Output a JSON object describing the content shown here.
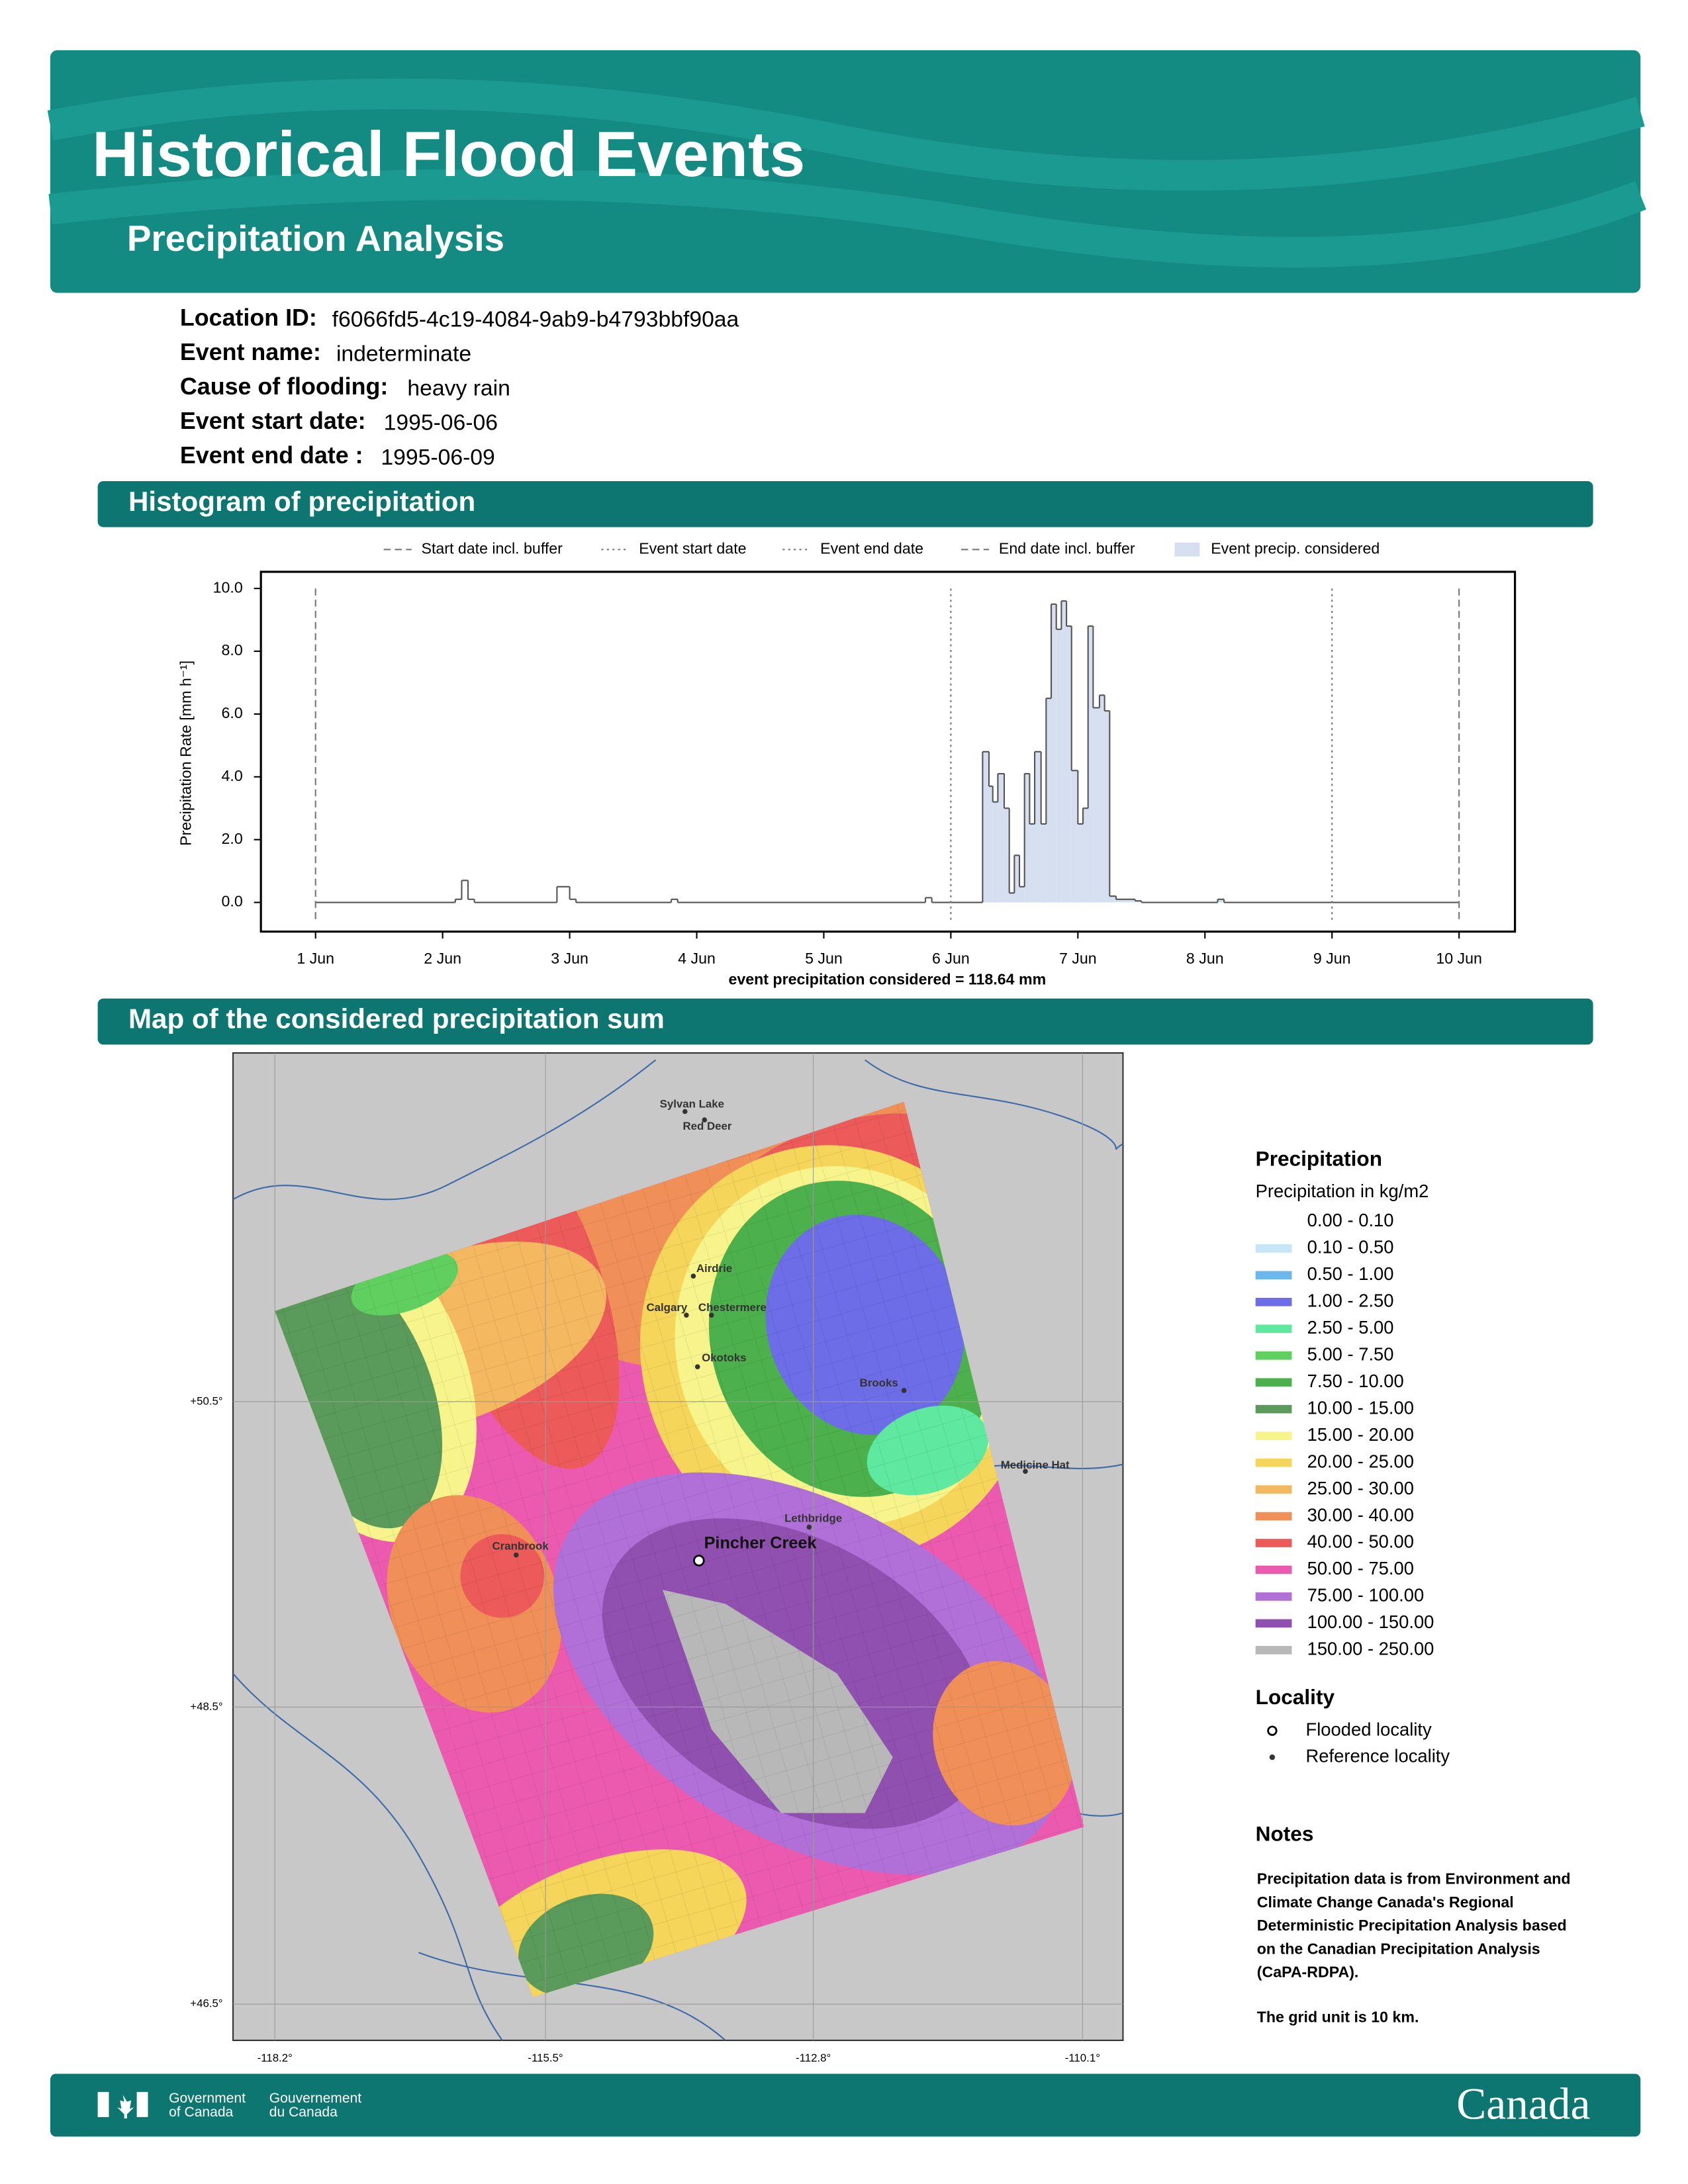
{
  "header": {
    "title": "Historical Flood Events",
    "subtitle": "Precipitation Analysis"
  },
  "event_info": [
    {
      "label": "Location ID:",
      "value": "f6066fd5-4c19-4084-9ab9-b4793bbf90aa"
    },
    {
      "label": "Event name:",
      "value": "indeterminate"
    },
    {
      "label": "Cause of flooding:",
      "value": "heavy rain"
    },
    {
      "label": "Event start date:",
      "value": "1995-06-06"
    },
    {
      "label": "Event end date :",
      "value": "1995-06-09"
    }
  ],
  "sections": [
    "Histogram of precipitation",
    "Map of the considered precipitation sum"
  ],
  "chart_data": {
    "type": "line",
    "drawstyle": "steps-post",
    "ylabel": "Precipitation Rate [mm h⁻¹]",
    "annotation": "event precipitation considered = 118.64 mm",
    "xlim": [
      -0.43,
      9.44
    ],
    "ylim": [
      -0.93,
      10.53
    ],
    "xticks": [
      {
        "value": 0,
        "label": "1 Jun"
      },
      {
        "value": 1,
        "label": "2 Jun"
      },
      {
        "value": 2,
        "label": "3 Jun"
      },
      {
        "value": 3,
        "label": "4 Jun"
      },
      {
        "value": 4,
        "label": "5 Jun"
      },
      {
        "value": 5,
        "label": "6 Jun"
      },
      {
        "value": 6,
        "label": "7 Jun"
      },
      {
        "value": 7,
        "label": "8 Jun"
      },
      {
        "value": 8,
        "label": "9 Jun"
      },
      {
        "value": 9,
        "label": "10 Jun"
      }
    ],
    "yticks": [
      {
        "value": 0,
        "label": "0.0"
      },
      {
        "value": 2,
        "label": "2.0"
      },
      {
        "value": 4,
        "label": "4.0"
      },
      {
        "value": 6,
        "label": "6.0"
      },
      {
        "value": 8,
        "label": "8.0"
      },
      {
        "value": 10,
        "label": "10.0"
      }
    ],
    "x": [
      0,
      1.1,
      1.15,
      1.2,
      1.25,
      1.9,
      2.0,
      2.05,
      2.8,
      2.85,
      4.8,
      4.85,
      5.25,
      5.3,
      5.33,
      5.37,
      5.42,
      5.46,
      5.5,
      5.54,
      5.58,
      5.62,
      5.66,
      5.71,
      5.75,
      5.79,
      5.83,
      5.87,
      5.91,
      5.95,
      6.0,
      6.04,
      6.08,
      6.12,
      6.17,
      6.21,
      6.25,
      6.3,
      6.45,
      6.5,
      7.1,
      7.15,
      9.0
    ],
    "values": [
      0,
      0.1,
      0.7,
      0.1,
      0,
      0.5,
      0.1,
      0,
      0.1,
      0,
      0.15,
      0,
      4.8,
      3.7,
      3.2,
      4.1,
      3.0,
      0.3,
      1.5,
      0.5,
      4.1,
      2.5,
      4.8,
      2.5,
      6.5,
      9.5,
      8.7,
      9.6,
      8.8,
      4.2,
      2.5,
      3.0,
      8.8,
      6.2,
      6.6,
      6.1,
      0.2,
      0.1,
      0.05,
      0,
      0.1,
      0,
      0
    ],
    "color": "#555555",
    "fill": {
      "name": "Event precip. considered",
      "color": "#d5dff0"
    },
    "vlines": [
      {
        "name": "Start date incl. buffer",
        "x": 0,
        "style": "dashed"
      },
      {
        "name": "Event start date",
        "x": 5,
        "style": "dotted"
      },
      {
        "name": "Event end date",
        "x": 8,
        "style": "dotted"
      },
      {
        "name": "End date incl. buffer",
        "x": 9,
        "style": "dashed"
      }
    ]
  },
  "map": {
    "lon_ticks": [
      "-118.2°",
      "-115.5°",
      "-112.8°",
      "-110.1°"
    ],
    "lat_ticks": [
      "+50.5°",
      "+48.5°",
      "+46.5°"
    ],
    "reference_localities": [
      "Sylvan Lake",
      "Red Deer",
      "Airdrie",
      "Calgary",
      "Chestermere",
      "Okotoks",
      "Brooks",
      "Medicine Hat",
      "Lethbridge",
      "Cranbrook"
    ],
    "flooded_locality": "Pincher Creek",
    "legend": {
      "title": "Precipitation",
      "subtitle": "Precipitation in kg/m2",
      "classes": [
        {
          "label": "0.00 - 0.10",
          "color": "#ffffff"
        },
        {
          "label": "0.10 - 0.50",
          "color": "#c6e6f7"
        },
        {
          "label": "0.50 - 1.00",
          "color": "#6cb8ee"
        },
        {
          "label": "1.00 - 2.50",
          "color": "#6d6de8"
        },
        {
          "label": "2.50 - 5.00",
          "color": "#5fe8a0"
        },
        {
          "label": "5.00 - 7.50",
          "color": "#5fd060"
        },
        {
          "label": "7.50 - 10.00",
          "color": "#4cb04c"
        },
        {
          "label": "10.00 - 15.00",
          "color": "#5a9a5a"
        },
        {
          "label": "15.00 - 20.00",
          "color": "#f6f48a"
        },
        {
          "label": "20.00 - 25.00",
          "color": "#f5d55a"
        },
        {
          "label": "25.00 - 30.00",
          "color": "#f3b860"
        },
        {
          "label": "30.00 - 40.00",
          "color": "#f09058"
        },
        {
          "label": "40.00 - 50.00",
          "color": "#ec5a5a"
        },
        {
          "label": "50.00 - 75.00",
          "color": "#ec5ab0"
        },
        {
          "label": "75.00 - 100.00",
          "color": "#b070d8"
        },
        {
          "label": "100.00 - 150.00",
          "color": "#9050b0"
        },
        {
          "label": "150.00 - 250.00",
          "color": "#b8b8b8"
        }
      ]
    },
    "locality_legend": {
      "title": "Locality",
      "items": [
        "Flooded locality",
        "Reference locality"
      ]
    },
    "notes": {
      "title": "Notes",
      "lines": [
        "Precipitation data is from Environment and",
        "Climate Change Canada's Regional",
        "Deterministic Precipitation Analysis based",
        "on the Canadian Precipitation Analysis",
        "(CaPA-RDPA)."
      ],
      "grid_note": "The grid unit is 10 km."
    }
  },
  "footer": {
    "gov_en": [
      "Government",
      "of Canada"
    ],
    "gov_fr": [
      "Gouvernement",
      "du Canada"
    ],
    "wordmark": "Canada"
  }
}
